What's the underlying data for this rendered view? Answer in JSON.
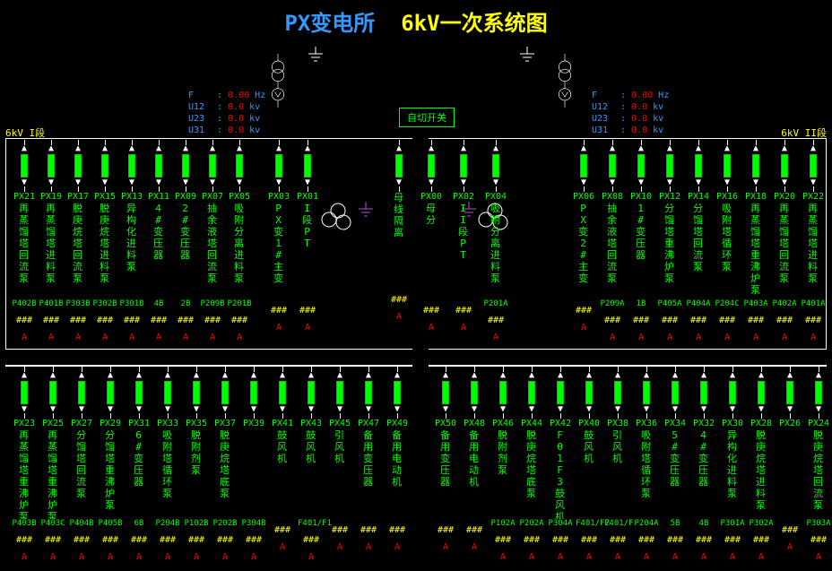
{
  "title": {
    "left": "PX变电所",
    "right": "6kV一次系统图"
  },
  "section_labels": {
    "left": "6kV I段",
    "right": "6kV II段"
  },
  "measurements": {
    "left": {
      "F": "0.00",
      "U12": "0.0",
      "U23": "0.0",
      "U31": "0.0"
    },
    "right": {
      "F": "0.00",
      "U12": "0.0",
      "U23": "0.0",
      "U31": "0.0"
    },
    "F_unit": "Hz",
    "U_unit": "kv"
  },
  "switch_label": "自切开关",
  "colors": {
    "bg": "#000000",
    "title_blue": "#3399ff",
    "title_yellow": "#ffff00",
    "green": "#00ff00",
    "red": "#ff0000",
    "white": "#ffffff"
  },
  "feeders_top_left": [
    {
      "id": "PX21",
      "name": "再蒸馏塔回流泵",
      "code": "P402B"
    },
    {
      "id": "PX19",
      "name": "再蒸馏塔进料泵",
      "code": "P401B"
    },
    {
      "id": "PX17",
      "name": "脱庚烷塔回流泵",
      "code": "P303B"
    },
    {
      "id": "PX15",
      "name": "脱庚烷塔进料泵",
      "code": "P302B"
    },
    {
      "id": "PX13",
      "name": "异构化进料泵",
      "code": "P301B"
    },
    {
      "id": "PX11",
      "name": "4#变压器",
      "code": "4B"
    },
    {
      "id": "PX09",
      "name": "2#变压器",
      "code": "2B"
    },
    {
      "id": "PX07",
      "name": "抽余液塔回流泵",
      "code": "P209B"
    },
    {
      "id": "PX05",
      "name": "吸附分离进料泵",
      "code": "P201B"
    }
  ],
  "feeders_top_mid_left": [
    {
      "id": "PX03",
      "name": "PX变1#主变",
      "code": ""
    },
    {
      "id": "PX01",
      "name": "I段PT",
      "code": ""
    }
  ],
  "feeders_top_mid_right": [
    {
      "id": "",
      "name": "母线隔离",
      "code": ""
    },
    {
      "id": "PX00",
      "name": "母分",
      "code": ""
    },
    {
      "id": "PX02",
      "name": "II段PT",
      "code": ""
    },
    {
      "id": "PX04",
      "name": "吸附分离进料泵",
      "code": "P201A"
    }
  ],
  "feeders_top_right": [
    {
      "id": "PX06",
      "name": "PX变2#主变",
      "code": ""
    },
    {
      "id": "PX08",
      "name": "抽余液塔回流泵",
      "code": "P209A"
    },
    {
      "id": "PX10",
      "name": "1#变压器",
      "code": "1B"
    },
    {
      "id": "PX12",
      "name": "分馏塔重沸炉泵",
      "code": "P405A"
    },
    {
      "id": "PX14",
      "name": "分馏塔回流泵",
      "code": "P404A"
    },
    {
      "id": "PX16",
      "name": "吸附塔循环泵",
      "code": "P204C"
    },
    {
      "id": "PX18",
      "name": "再蒸馏塔重沸炉泵",
      "code": "P403A"
    },
    {
      "id": "PX20",
      "name": "再蒸馏塔回流泵",
      "code": "P402A"
    },
    {
      "id": "PX22",
      "name": "再蒸馏塔进料泵",
      "code": "P401A"
    }
  ],
  "feeders_bot_left": [
    {
      "id": "PX23",
      "name": "再蒸馏塔重沸炉泵",
      "code": "P403B"
    },
    {
      "id": "PX25",
      "name": "再蒸馏塔重沸炉泵",
      "code": "P403C"
    },
    {
      "id": "PX27",
      "name": "分馏塔回流泵",
      "code": "P404B"
    },
    {
      "id": "PX29",
      "name": "分馏塔重沸炉泵",
      "code": "P405B"
    },
    {
      "id": "PX31",
      "name": "6#变压器",
      "code": "6B"
    },
    {
      "id": "PX33",
      "name": "吸附塔循环泵",
      "code": "P204B"
    },
    {
      "id": "PX35",
      "name": "脱附剂泵",
      "code": "P102B"
    },
    {
      "id": "PX37",
      "name": "脱庚烷塔底泵",
      "code": "P202B"
    },
    {
      "id": "PX39",
      "name": "",
      "code": "P304B"
    },
    {
      "id": "PX41",
      "name": "鼓风机",
      "code": ""
    },
    {
      "id": "PX43",
      "name": "鼓风机",
      "code": "F401/F1"
    },
    {
      "id": "PX45",
      "name": "引风机",
      "code": ""
    },
    {
      "id": "PX47",
      "name": "备用变压器",
      "code": ""
    },
    {
      "id": "PX49",
      "name": "备用电动机",
      "code": ""
    }
  ],
  "feeders_bot_right": [
    {
      "id": "PX50",
      "name": "备用变压器",
      "code": ""
    },
    {
      "id": "PX48",
      "name": "备用电动机",
      "code": ""
    },
    {
      "id": "PX46",
      "name": "脱附剂泵",
      "code": "P102A"
    },
    {
      "id": "PX44",
      "name": "脱庚烷塔底泵",
      "code": "P202A"
    },
    {
      "id": "PX42",
      "name": "F01F3鼓风机",
      "code": "P304A"
    },
    {
      "id": "PX40",
      "name": "鼓风机",
      "code": "F401/F2"
    },
    {
      "id": "PX38",
      "name": "引风机",
      "code": "F401/F"
    },
    {
      "id": "PX36",
      "name": "吸附塔循环泵",
      "code": "P204A"
    },
    {
      "id": "PX34",
      "name": "5#变压器",
      "code": "5B"
    },
    {
      "id": "PX32",
      "name": "4#变压器",
      "code": "4B"
    },
    {
      "id": "PX30",
      "name": "异构化进料泵",
      "code": "P301A"
    },
    {
      "id": "PX28",
      "name": "脱庚烷塔进料泵",
      "code": "P302A"
    },
    {
      "id": "PX26",
      "name": "",
      "code": ""
    },
    {
      "id": "PX24",
      "name": "脱庚烷塔回流泵",
      "code": "P303A"
    }
  ]
}
